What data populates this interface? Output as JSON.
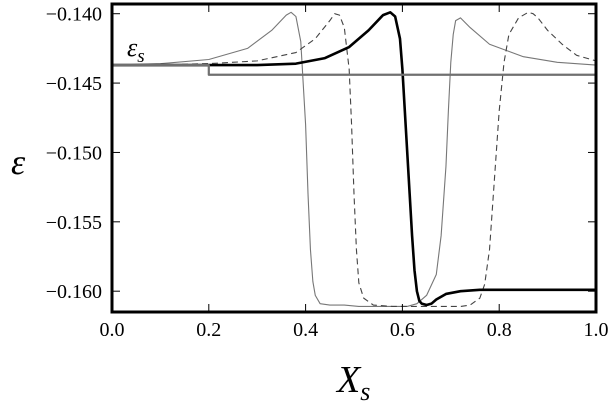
{
  "chart_data": {
    "type": "line",
    "title": "",
    "xlabel_main": "X",
    "xlabel_sub": "s",
    "ylabel": "ε",
    "annotation_main": "ε",
    "annotation_sub": "s",
    "xlim": [
      0.0,
      1.0
    ],
    "ylim": [
      -0.1615,
      -0.1393
    ],
    "x_ticks": [
      "0.0",
      "0.2",
      "0.4",
      "0.6",
      "0.8",
      "1.0"
    ],
    "x_tick_values": [
      0.0,
      0.2,
      0.4,
      0.6,
      0.8,
      1.0
    ],
    "y_ticks": [
      "-0.140",
      "-0.145",
      "-0.150",
      "-0.155",
      "-0.160"
    ],
    "y_tick_values": [
      -0.14,
      -0.145,
      -0.15,
      -0.155,
      -0.16
    ],
    "grid": false,
    "series": [
      {
        "style": "thin-gray",
        "color": "#777777",
        "x": [
          0.0,
          0.1,
          0.2,
          0.28,
          0.33,
          0.36,
          0.37,
          0.38,
          0.39,
          0.4,
          0.405,
          0.41,
          0.415,
          0.42,
          0.43,
          0.45,
          0.48,
          0.51,
          0.53,
          0.55,
          0.57,
          0.59,
          0.61,
          0.63,
          0.65,
          0.67,
          0.68,
          0.69,
          0.695,
          0.7,
          0.705,
          0.71,
          0.72,
          0.74,
          0.78,
          0.85,
          0.92,
          1.0
        ],
        "y": [
          -0.1437,
          -0.1436,
          -0.1433,
          -0.1425,
          -0.1412,
          -0.1401,
          -0.1399,
          -0.1402,
          -0.142,
          -0.148,
          -0.153,
          -0.157,
          -0.1593,
          -0.1603,
          -0.1609,
          -0.161,
          -0.161,
          -0.1611,
          -0.1611,
          -0.1611,
          -0.1611,
          -0.1611,
          -0.1611,
          -0.1609,
          -0.1603,
          -0.1588,
          -0.156,
          -0.151,
          -0.147,
          -0.1435,
          -0.1415,
          -0.1405,
          -0.1403,
          -0.141,
          -0.1422,
          -0.1431,
          -0.1435,
          -0.1437
        ]
      },
      {
        "style": "dashed",
        "color": "#444444",
        "x": [
          0.0,
          0.1,
          0.2,
          0.3,
          0.38,
          0.42,
          0.45,
          0.46,
          0.47,
          0.48,
          0.49,
          0.495,
          0.5,
          0.505,
          0.51,
          0.52,
          0.54,
          0.58,
          0.62,
          0.66,
          0.7,
          0.72,
          0.74,
          0.76,
          0.77,
          0.78,
          0.79,
          0.8,
          0.81,
          0.82,
          0.84,
          0.86,
          0.87,
          0.88,
          0.9,
          0.93,
          0.96,
          1.0
        ],
        "y": [
          -0.1437,
          -0.1437,
          -0.1436,
          -0.1434,
          -0.1428,
          -0.1418,
          -0.1405,
          -0.14,
          -0.1401,
          -0.141,
          -0.144,
          -0.148,
          -0.153,
          -0.157,
          -0.1594,
          -0.1605,
          -0.161,
          -0.1611,
          -0.1611,
          -0.1611,
          -0.1611,
          -0.1611,
          -0.161,
          -0.1605,
          -0.1595,
          -0.157,
          -0.152,
          -0.147,
          -0.1435,
          -0.1415,
          -0.1403,
          -0.1399,
          -0.14,
          -0.1403,
          -0.1412,
          -0.1422,
          -0.143,
          -0.1434
        ]
      },
      {
        "style": "thick",
        "color": "#000000",
        "x": [
          0.0,
          0.1,
          0.2,
          0.3,
          0.38,
          0.44,
          0.49,
          0.53,
          0.56,
          0.575,
          0.585,
          0.595,
          0.6,
          0.605,
          0.61,
          0.615,
          0.62,
          0.625,
          0.63,
          0.635,
          0.64,
          0.65,
          0.66,
          0.67,
          0.69,
          0.72,
          0.76,
          0.8,
          0.85,
          0.9,
          0.95,
          1.0
        ],
        "y": [
          -0.1437,
          -0.1437,
          -0.1437,
          -0.1437,
          -0.1436,
          -0.1432,
          -0.1424,
          -0.1412,
          -0.1401,
          -0.1399,
          -0.1402,
          -0.1418,
          -0.144,
          -0.147,
          -0.15,
          -0.153,
          -0.156,
          -0.1585,
          -0.16,
          -0.1607,
          -0.1609,
          -0.161,
          -0.1609,
          -0.1606,
          -0.1602,
          -0.16,
          -0.1599,
          -0.1599,
          -0.1599,
          -0.1599,
          -0.1599,
          -0.1599
        ]
      },
      {
        "style": "reference-step",
        "color": "#707070",
        "x": [
          0.0,
          0.2,
          0.2,
          1.0
        ],
        "y": [
          -0.1437,
          -0.1437,
          -0.1444,
          -0.1444
        ]
      }
    ]
  }
}
